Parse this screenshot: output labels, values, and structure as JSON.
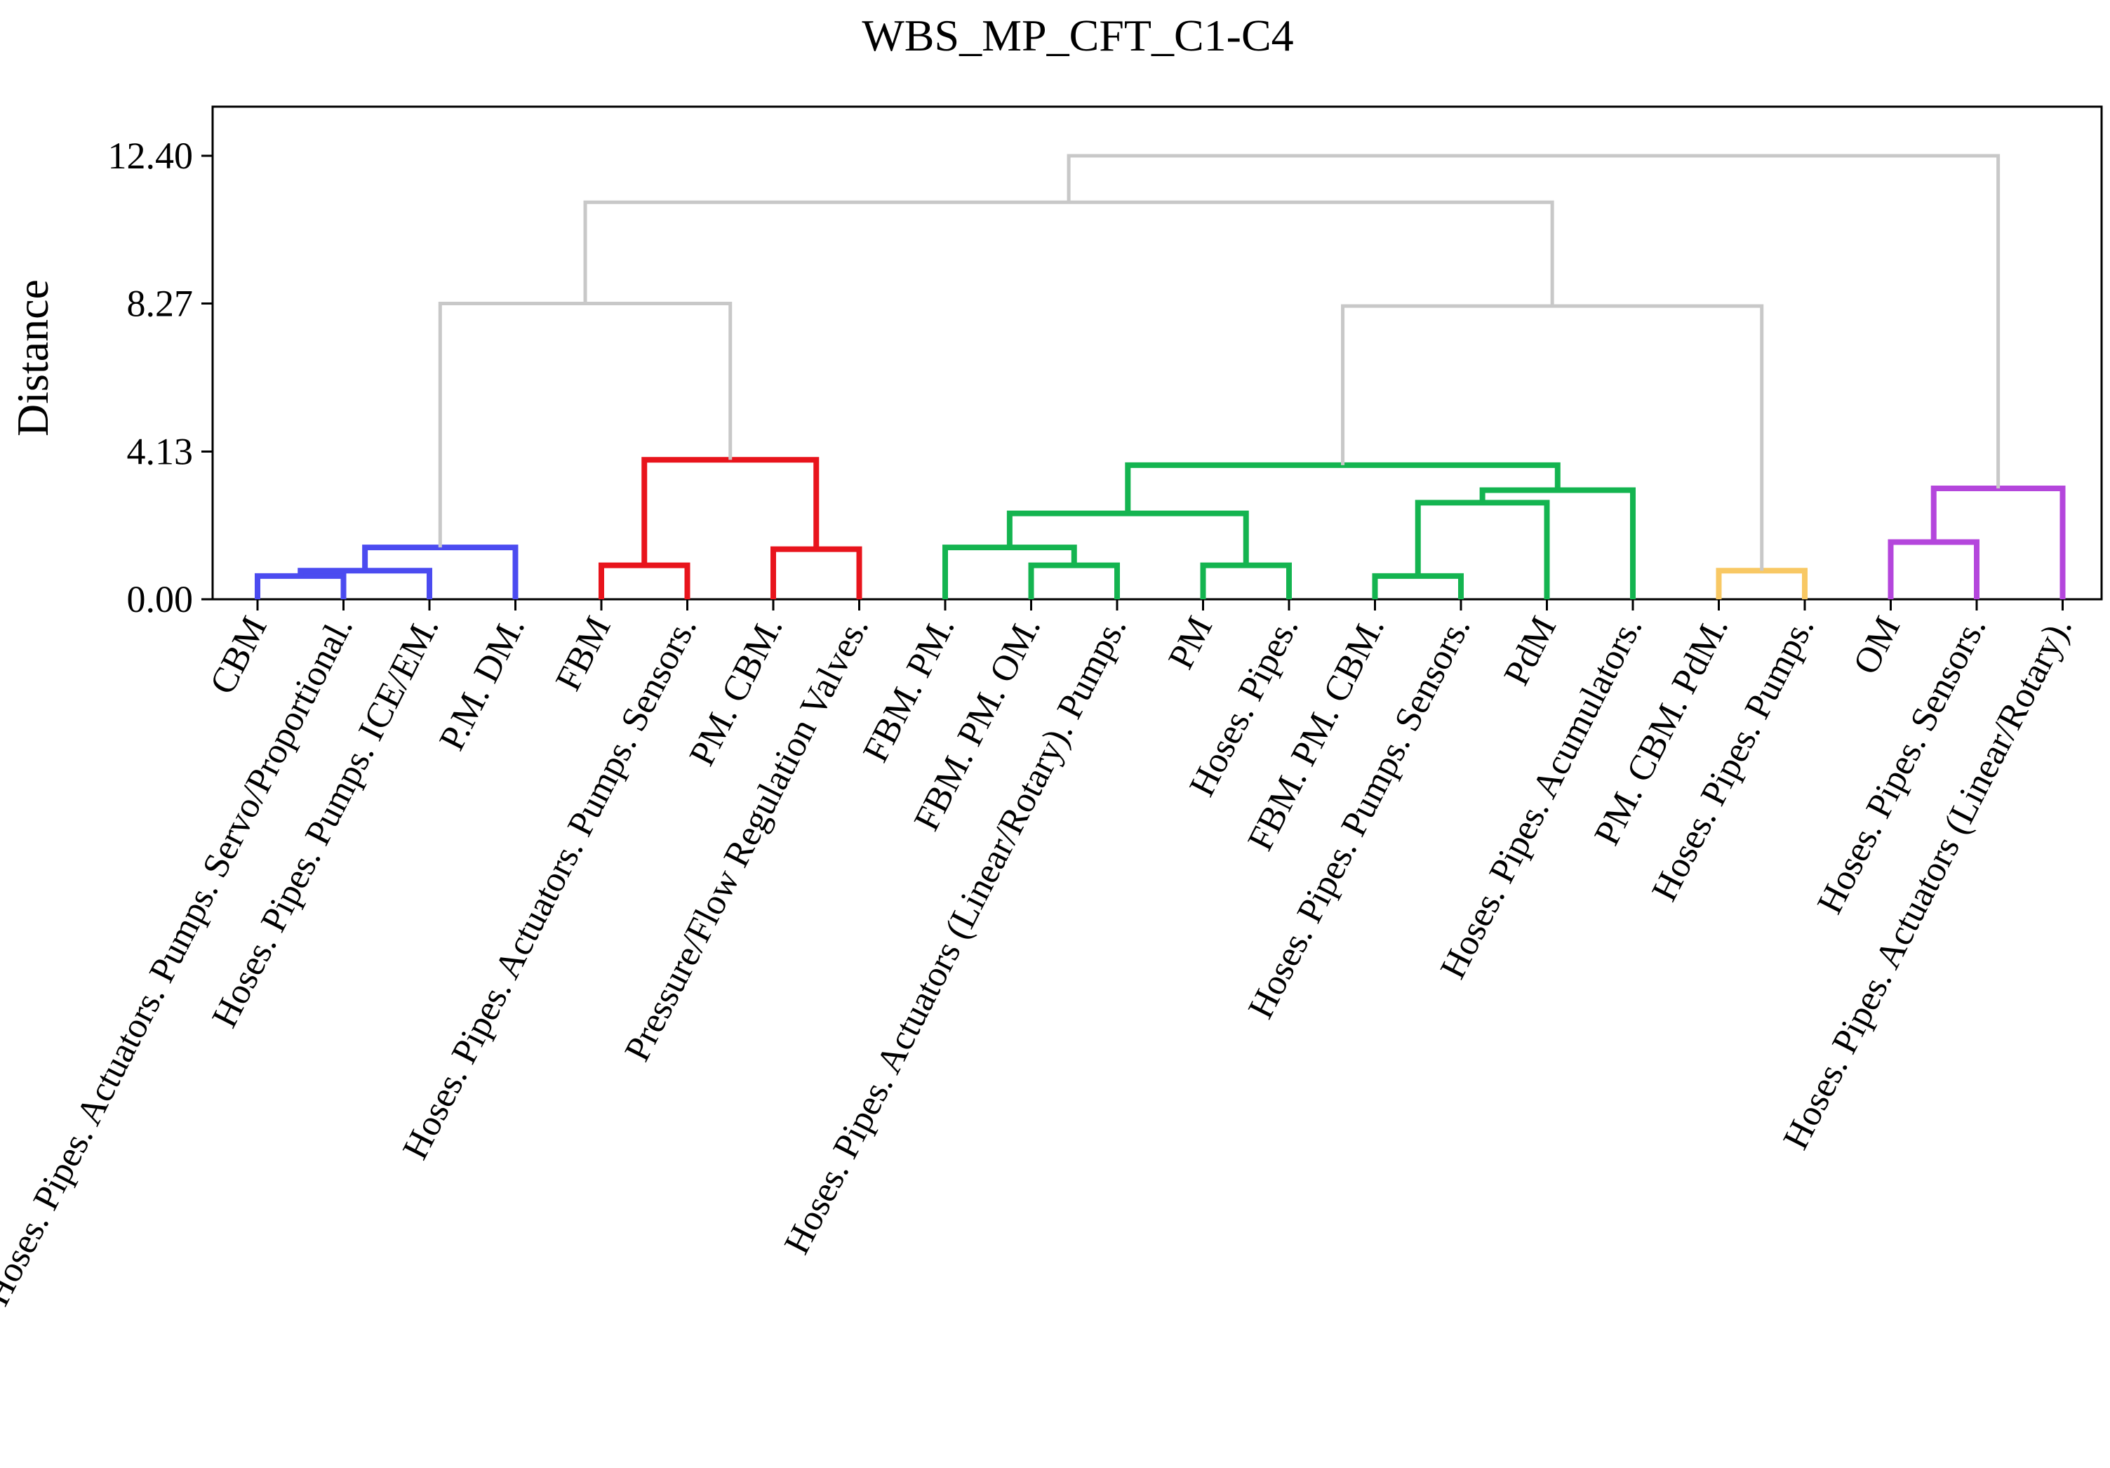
{
  "chart_data": {
    "type": "dendrogram",
    "title": "WBS_MP_CFT_C1-C4",
    "ylabel": "Distance",
    "xlabel": "",
    "ylim": [
      0,
      13.6
    ],
    "yticks": [
      "0.00",
      "4.13",
      "8.27",
      "12.40"
    ],
    "ytick_values": [
      0.0,
      4.13,
      8.27,
      12.4
    ],
    "grid": false,
    "colors": {
      "blue": "#4b4bf0",
      "red": "#e8141c",
      "green": "#14b450",
      "yellow": "#f8c864",
      "purple": "#b446dc",
      "gray": "#c8c8c8"
    },
    "leaves": [
      "CBM",
      "Hoses. Pipes. Actuators. Pumps. Servo/Proportional.",
      "Hoses. Pipes. Pumps. ICE/EM.",
      "P.M. DM.",
      "FBM",
      "Hoses. Pipes. Actuators. Pumps. Sensors.",
      "PM. CBM.",
      "Pressure/Flow Regulation Valves.",
      "FBM. PM.",
      "FBM. PM. OM.",
      "Hoses. Pipes. Actuators (Linear/Rotary). Pumps.",
      "PM",
      "Hoses. Pipes.",
      "FBM. PM. CBM.",
      "Hoses. Pipes. Pumps. Sensors.",
      "PdM",
      "Hoses. Pipes. Acumulators.",
      "PM. CBM. PdM.",
      "Hoses. Pipes. Pumps.",
      "OM",
      "Hoses. Pipes. Sensors.",
      "Hoses. Pipes. Actuators (Linear/Rotary)."
    ],
    "links": [
      {
        "left": 0,
        "right": 1,
        "height": 0.65,
        "color": "blue"
      },
      {
        "left": 22,
        "right": 2,
        "height": 0.8,
        "color": "blue"
      },
      {
        "left": 23,
        "right": 3,
        "height": 1.45,
        "color": "blue"
      },
      {
        "left": 4,
        "right": 5,
        "height": 0.95,
        "color": "red"
      },
      {
        "left": 6,
        "right": 7,
        "height": 1.4,
        "color": "red"
      },
      {
        "left": 25,
        "right": 26,
        "height": 3.9,
        "color": "red"
      },
      {
        "left": 9,
        "right": 10,
        "height": 0.95,
        "color": "green"
      },
      {
        "left": 8,
        "right": 28,
        "height": 1.45,
        "color": "green"
      },
      {
        "left": 11,
        "right": 12,
        "height": 0.95,
        "color": "green"
      },
      {
        "left": 29,
        "right": 30,
        "height": 2.4,
        "color": "green"
      },
      {
        "left": 13,
        "right": 14,
        "height": 0.65,
        "color": "green"
      },
      {
        "left": 32,
        "right": 15,
        "height": 2.7,
        "color": "green"
      },
      {
        "left": 33,
        "right": 16,
        "height": 3.05,
        "color": "green"
      },
      {
        "left": 31,
        "right": 34,
        "height": 3.75,
        "color": "green"
      },
      {
        "left": 17,
        "right": 18,
        "height": 0.8,
        "color": "yellow"
      },
      {
        "left": 19,
        "right": 20,
        "height": 1.6,
        "color": "purple"
      },
      {
        "left": 37,
        "right": 21,
        "height": 3.1,
        "color": "purple"
      },
      {
        "left": 24,
        "right": 27,
        "height": 8.27,
        "color": "gray"
      },
      {
        "left": 35,
        "right": 36,
        "height": 8.2,
        "color": "gray"
      },
      {
        "left": 39,
        "right": 40,
        "height": 11.1,
        "color": "gray"
      },
      {
        "left": 41,
        "right": 38,
        "height": 12.4,
        "color": "gray"
      }
    ]
  }
}
